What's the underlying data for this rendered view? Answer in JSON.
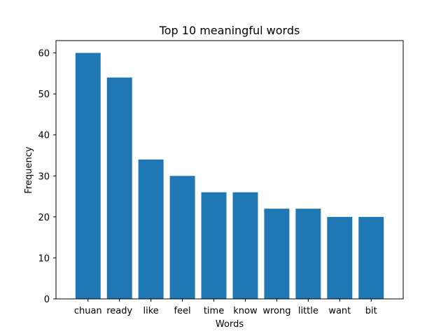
{
  "chart_data": {
    "type": "bar",
    "title": "Top 10 meaningful words",
    "xlabel": "Words",
    "ylabel": "Frequency",
    "categories": [
      "chuan",
      "ready",
      "like",
      "feel",
      "time",
      "know",
      "wrong",
      "little",
      "want",
      "bit"
    ],
    "values": [
      60,
      54,
      34,
      30,
      26,
      26,
      22,
      22,
      20,
      20
    ],
    "ylim": [
      0,
      63
    ],
    "yticks": [
      0,
      10,
      20,
      30,
      40,
      50,
      60
    ],
    "bar_color": "#1f77b4",
    "grid": false,
    "legend": "none"
  }
}
